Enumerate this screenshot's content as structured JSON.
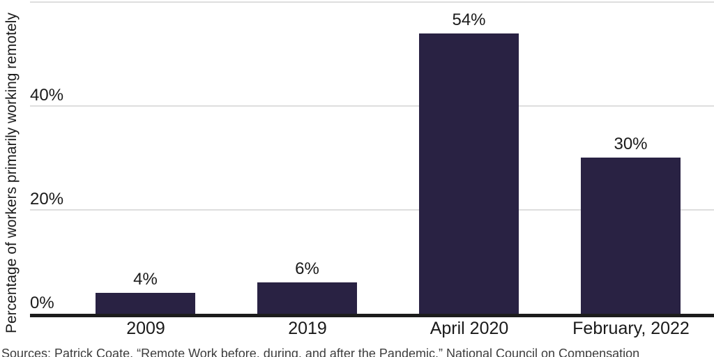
{
  "chart_data": {
    "type": "bar",
    "title": "",
    "categories": [
      "2009",
      "2019",
      "April 2020",
      "February, 2022"
    ],
    "values": [
      4,
      6,
      54,
      30
    ],
    "bar_labels": [
      "4%",
      "6%",
      "54%",
      "30%"
    ],
    "xlabel": "",
    "ylabel": "Percentage of workers primarily working remotely",
    "ylim": [
      0,
      60
    ],
    "ytick_labels": [
      "0%",
      "20%",
      "40%"
    ],
    "ytick_values": [
      0,
      20,
      40
    ],
    "gridline_values": [
      20,
      40,
      60
    ],
    "grid": "on",
    "legend_position": "none",
    "bar_color": "#292243"
  },
  "colors": {
    "background": "#ffffff",
    "bar": "#292243",
    "axis_line": "#1c1c1c",
    "gridline": "#dedede",
    "label_text": "#1a1a1a",
    "source_text": "#3d3d3d"
  },
  "source_note": "Sources: Patrick Coate, “Remote Work before, during, and after the Pandemic,” National Council on Compensation"
}
